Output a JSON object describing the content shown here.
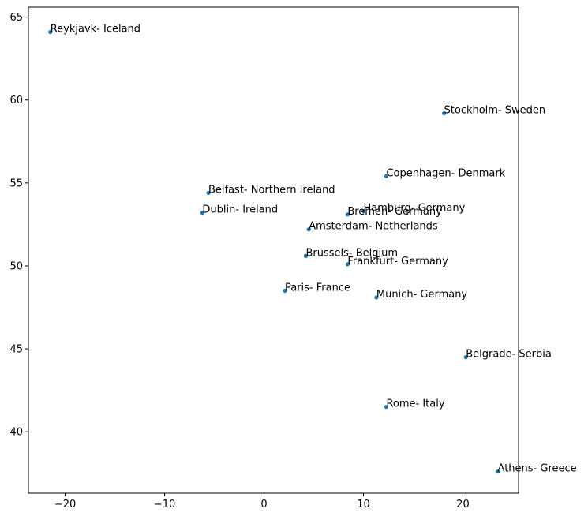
{
  "chart_data": {
    "type": "scatter",
    "title": "",
    "xlabel": "",
    "ylabel": "",
    "xlim": [
      -23.7,
      25.6
    ],
    "ylim": [
      36.3,
      65.6
    ],
    "grid": false,
    "marker_color": "#1f77b4",
    "x_ticks": [
      -20,
      -10,
      0,
      10,
      20
    ],
    "x_tick_labels": [
      "−20",
      "−10",
      "0",
      "10",
      "20"
    ],
    "y_ticks": [
      40,
      45,
      50,
      55,
      60,
      65
    ],
    "y_tick_labels": [
      "40",
      "45",
      "50",
      "55",
      "60",
      "65"
    ],
    "points": [
      {
        "label": "Reykjavk- Iceland",
        "x": -21.5,
        "y": 64.1
      },
      {
        "label": "Stockholm- Sweden",
        "x": 18.1,
        "y": 59.2
      },
      {
        "label": "Copenhagen- Denmark",
        "x": 12.3,
        "y": 55.4
      },
      {
        "label": "Belfast- Northern Ireland",
        "x": -5.6,
        "y": 54.4
      },
      {
        "label": "Dublin- Ireland",
        "x": -6.2,
        "y": 53.2
      },
      {
        "label": "Hamburg- Germany",
        "x": 10.0,
        "y": 53.3
      },
      {
        "label": "Bremen- Germany",
        "x": 8.4,
        "y": 53.1
      },
      {
        "label": "Amsterdam- Netherlands",
        "x": 4.5,
        "y": 52.2
      },
      {
        "label": "Brussels- Belgium",
        "x": 4.2,
        "y": 50.6
      },
      {
        "label": "Frankfurt- Germany",
        "x": 8.4,
        "y": 50.1
      },
      {
        "label": "Paris- France",
        "x": 2.1,
        "y": 48.5
      },
      {
        "label": "Munich- Germany",
        "x": 11.3,
        "y": 48.1
      },
      {
        "label": "Belgrade- Serbia",
        "x": 20.3,
        "y": 44.5
      },
      {
        "label": "Rome- Italy",
        "x": 12.3,
        "y": 41.5
      },
      {
        "label": "Athens- Greece",
        "x": 23.5,
        "y": 37.6
      }
    ]
  }
}
